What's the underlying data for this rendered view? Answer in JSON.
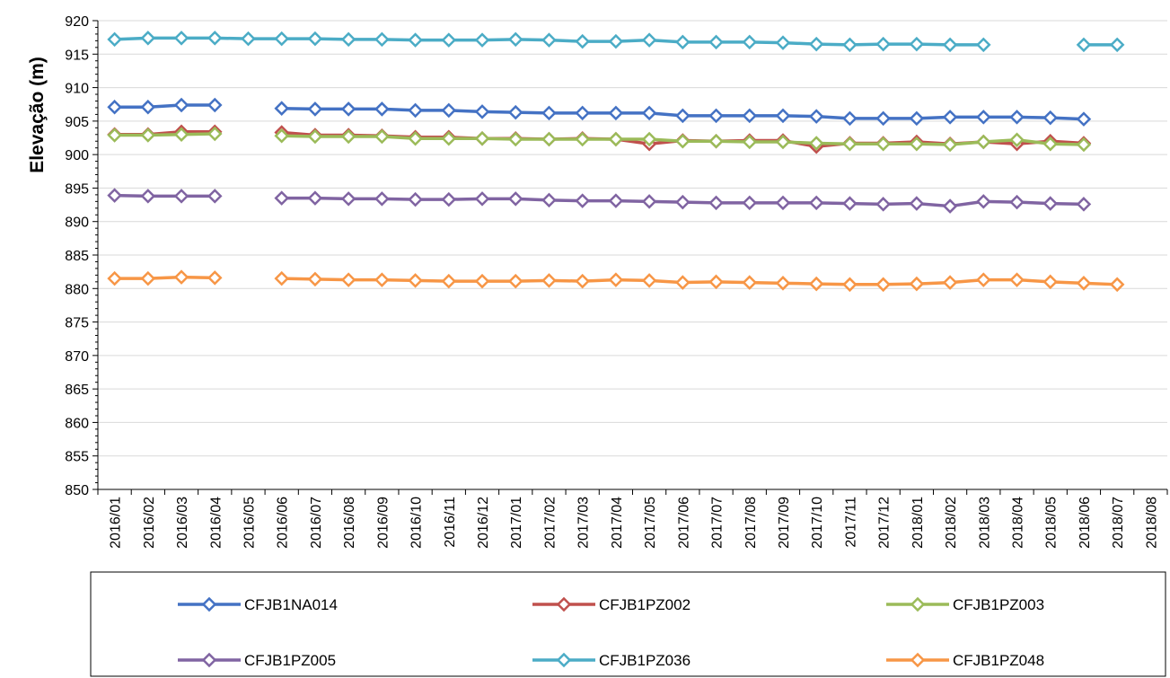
{
  "chart_data": {
    "type": "line",
    "title": "",
    "xlabel": "",
    "ylabel": "Elevação (m)",
    "ylim": [
      850,
      920
    ],
    "ytick_step": 5,
    "grid": true,
    "legend_position": "bottom",
    "categories": [
      "2016/01",
      "2016/02",
      "2016/03",
      "2016/04",
      "2016/05",
      "2016/06",
      "2016/07",
      "2016/08",
      "2016/09",
      "2016/10",
      "2016/11",
      "2016/12",
      "2017/01",
      "2017/02",
      "2017/03",
      "2017/04",
      "2017/05",
      "2017/06",
      "2017/07",
      "2017/08",
      "2017/09",
      "2017/10",
      "2017/11",
      "2017/12",
      "2018/01",
      "2018/02",
      "2018/03",
      "2018/04",
      "2018/05",
      "2018/06",
      "2018/07",
      "2018/08"
    ],
    "series": [
      {
        "name": "CFJB1NA014",
        "color": "#4472C4",
        "values": [
          907.1,
          907.1,
          907.4,
          907.4,
          null,
          906.9,
          906.8,
          906.8,
          906.8,
          906.6,
          906.6,
          906.4,
          906.3,
          906.2,
          906.2,
          906.2,
          906.2,
          905.8,
          905.8,
          905.8,
          905.8,
          905.7,
          905.4,
          905.4,
          905.4,
          905.6,
          905.6,
          905.6,
          905.5,
          905.3,
          null,
          null
        ]
      },
      {
        "name": "CFJB1PZ002",
        "color": "#C0504D",
        "values": [
          903.0,
          903.0,
          903.4,
          903.4,
          null,
          903.3,
          902.9,
          902.9,
          902.8,
          902.6,
          902.6,
          902.4,
          902.4,
          902.3,
          902.4,
          902.3,
          901.6,
          902.1,
          902.0,
          902.1,
          902.1,
          901.2,
          901.7,
          901.7,
          901.9,
          901.6,
          901.9,
          901.6,
          902.0,
          901.7,
          null,
          null
        ]
      },
      {
        "name": "CFJB1PZ003",
        "color": "#9BBB59",
        "values": [
          902.9,
          902.9,
          903.0,
          903.1,
          null,
          902.8,
          902.7,
          902.7,
          902.7,
          902.4,
          902.4,
          902.4,
          902.3,
          902.3,
          902.3,
          902.3,
          902.3,
          902.0,
          902.0,
          901.9,
          901.9,
          901.7,
          901.6,
          901.6,
          901.6,
          901.5,
          901.9,
          902.2,
          901.6,
          901.5,
          null,
          null
        ]
      },
      {
        "name": "CFJB1PZ005",
        "color": "#8064A2",
        "values": [
          893.9,
          893.8,
          893.8,
          893.8,
          null,
          893.5,
          893.5,
          893.4,
          893.4,
          893.3,
          893.3,
          893.4,
          893.4,
          893.2,
          893.1,
          893.1,
          893.0,
          892.9,
          892.8,
          892.8,
          892.8,
          892.8,
          892.7,
          892.6,
          892.7,
          892.3,
          893.0,
          892.9,
          892.7,
          892.6,
          null,
          null
        ]
      },
      {
        "name": "CFJB1PZ036",
        "color": "#4BACC6",
        "values": [
          917.2,
          917.4,
          917.4,
          917.4,
          917.3,
          917.3,
          917.3,
          917.2,
          917.2,
          917.1,
          917.1,
          917.1,
          917.2,
          917.1,
          916.9,
          916.9,
          917.1,
          916.8,
          916.8,
          916.8,
          916.7,
          916.5,
          916.4,
          916.5,
          916.5,
          916.4,
          916.4,
          null,
          null,
          916.4,
          916.4,
          null
        ]
      },
      {
        "name": "CFJB1PZ048",
        "color": "#F79646",
        "values": [
          881.5,
          881.5,
          881.7,
          881.6,
          null,
          881.5,
          881.4,
          881.3,
          881.3,
          881.2,
          881.1,
          881.1,
          881.1,
          881.2,
          881.1,
          881.3,
          881.2,
          880.9,
          881.0,
          880.9,
          880.8,
          880.7,
          880.6,
          880.6,
          880.7,
          880.9,
          881.3,
          881.3,
          881.0,
          880.8,
          880.6,
          null
        ]
      }
    ]
  }
}
